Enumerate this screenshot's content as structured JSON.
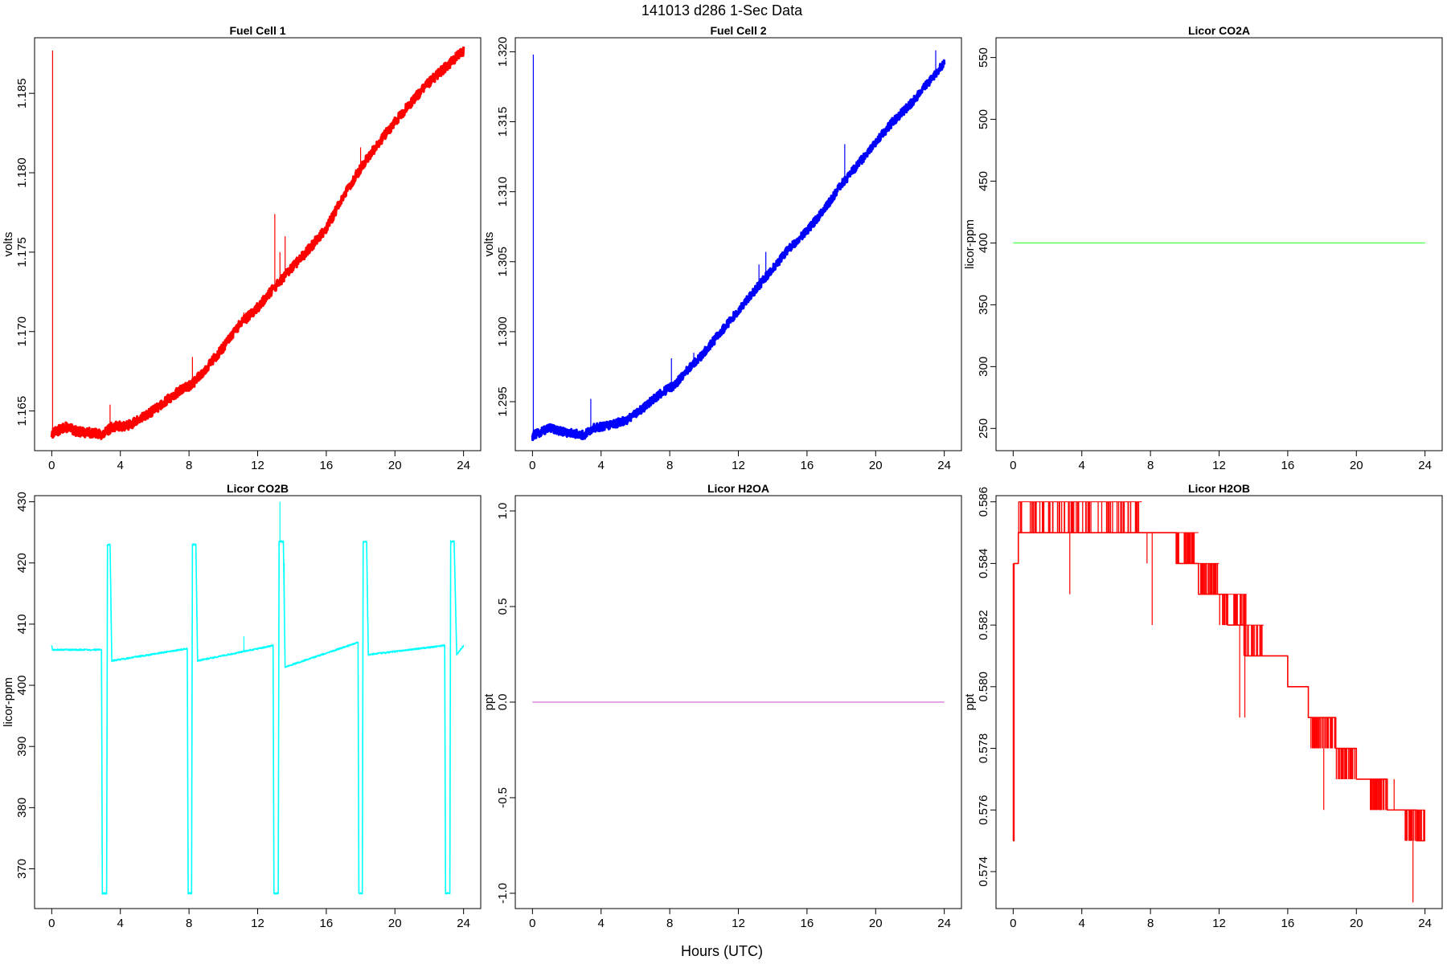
{
  "figure": {
    "title": "141013   d286   1-Sec Data",
    "xlabel": "Hours (UTC)"
  },
  "chart_data": [
    {
      "type": "line",
      "title": "Fuel Cell 1",
      "ylabel": "volts",
      "color": "#ff0000",
      "xlim": [
        -1,
        25
      ],
      "ylim": [
        1.1625,
        1.1885
      ],
      "xticks": [
        0,
        4,
        8,
        12,
        16,
        20,
        24
      ],
      "yticks": [
        1.165,
        1.17,
        1.175,
        1.18,
        1.185
      ],
      "ytick_labels": [
        "1.165",
        "1.170",
        "1.175",
        "1.180",
        "1.185"
      ],
      "band": 0.0003,
      "series": [
        {
          "x": [
            0,
            0.05,
            0.8,
            1.5,
            2.5,
            3.0,
            3.5,
            4.5,
            5.5,
            6.5,
            7.5,
            8.2,
            9.0,
            10,
            11,
            12,
            13,
            14,
            15,
            16,
            17,
            18,
            19,
            20,
            21,
            22,
            23,
            24
          ],
          "y": [
            1.1635,
            1.1636,
            1.164,
            1.1637,
            1.1636,
            1.1635,
            1.164,
            1.1641,
            1.1647,
            1.1655,
            1.1663,
            1.1667,
            1.1677,
            1.169,
            1.1705,
            1.1715,
            1.1728,
            1.174,
            1.1752,
            1.1765,
            1.1785,
            1.1803,
            1.1818,
            1.1832,
            1.1845,
            1.1857,
            1.1867,
            1.1877
          ]
        }
      ],
      "spikes": [
        {
          "x": 0.05,
          "y": 1.1877
        },
        {
          "x": 3.4,
          "y": 1.1654
        },
        {
          "x": 8.2,
          "y": 1.1684
        },
        {
          "x": 11.2,
          "y": 1.1712
        },
        {
          "x": 13.0,
          "y": 1.1774
        },
        {
          "x": 13.3,
          "y": 1.175
        },
        {
          "x": 13.6,
          "y": 1.176
        },
        {
          "x": 18.0,
          "y": 1.1816
        },
        {
          "x": 23.5,
          "y": 1.1876
        }
      ]
    },
    {
      "type": "line",
      "title": "Fuel Cell 2",
      "ylabel": "volts",
      "color": "#0000ff",
      "xlim": [
        -1,
        25
      ],
      "ylim": [
        1.2915,
        1.321
      ],
      "xticks": [
        0,
        4,
        8,
        12,
        16,
        20,
        24
      ],
      "yticks": [
        1.295,
        1.3,
        1.305,
        1.31,
        1.315,
        1.32
      ],
      "ytick_labels": [
        "1.295",
        "1.300",
        "1.305",
        "1.310",
        "1.315",
        "1.320"
      ],
      "band": 0.0003,
      "series": [
        {
          "x": [
            0,
            0.05,
            1.0,
            2.0,
            3.0,
            3.5,
            4.5,
            5.5,
            6.5,
            7.5,
            8.3,
            9.0,
            10,
            11,
            12,
            13,
            14,
            15,
            16,
            17,
            18,
            19,
            20,
            21,
            22,
            23,
            24
          ],
          "y": [
            1.2925,
            1.2926,
            1.2931,
            1.2928,
            1.2926,
            1.2931,
            1.2933,
            1.2937,
            1.2946,
            1.2956,
            1.2962,
            1.2972,
            1.2985,
            1.3,
            1.3015,
            1.303,
            1.3045,
            1.306,
            1.3072,
            1.3087,
            1.3105,
            1.312,
            1.3135,
            1.315,
            1.3162,
            1.3177,
            1.3192
          ]
        }
      ],
      "spikes": [
        {
          "x": 0.05,
          "y": 1.3198
        },
        {
          "x": 3.4,
          "y": 1.2952
        },
        {
          "x": 8.1,
          "y": 1.2981
        },
        {
          "x": 9.4,
          "y": 1.2985
        },
        {
          "x": 13.2,
          "y": 1.3048
        },
        {
          "x": 13.6,
          "y": 1.3057
        },
        {
          "x": 18.2,
          "y": 1.3134
        },
        {
          "x": 23.5,
          "y": 1.3201
        }
      ]
    },
    {
      "type": "line",
      "title": "Licor CO2A",
      "ylabel": "licor-ppm",
      "color": "#66ff66",
      "xlim": [
        -1,
        25
      ],
      "ylim": [
        232,
        566
      ],
      "xticks": [
        0,
        4,
        8,
        12,
        16,
        20,
        24
      ],
      "yticks": [
        250,
        300,
        350,
        400,
        450,
        500,
        550
      ],
      "ytick_labels": [
        "250",
        "300",
        "350",
        "400",
        "450",
        "500",
        "550"
      ],
      "band": 0,
      "series": [
        {
          "x": [
            0,
            24
          ],
          "y": [
            400,
            400
          ]
        }
      ],
      "spikes": []
    },
    {
      "type": "line",
      "title": "Licor CO2B",
      "ylabel": "licor-ppm",
      "color": "#00ffff",
      "xlim": [
        -1,
        25
      ],
      "ylim": [
        363.5,
        431
      ],
      "xticks": [
        0,
        4,
        8,
        12,
        16,
        20,
        24
      ],
      "yticks": [
        370,
        380,
        390,
        400,
        410,
        420,
        430
      ],
      "ytick_labels": [
        "370",
        "380",
        "390",
        "400",
        "410",
        "420",
        "430"
      ],
      "band": 0.12,
      "series": [
        {
          "x": [
            0,
            0.05,
            2.9,
            2.95,
            3.2,
            3.25,
            3.4,
            3.5,
            7.9,
            7.95,
            8.15,
            8.2,
            8.4,
            8.5,
            12.9,
            12.95,
            13.2,
            13.25,
            13.5,
            13.6,
            17.85,
            17.9,
            18.1,
            18.15,
            18.35,
            18.45,
            22.9,
            22.95,
            23.2,
            23.25,
            23.45,
            23.6,
            24
          ],
          "y": [
            406.5,
            405.8,
            405.8,
            366,
            366,
            423,
            423,
            404,
            406,
            366,
            366,
            423,
            423,
            404,
            406.5,
            366,
            366,
            423.5,
            423.5,
            403,
            407,
            366,
            366,
            423.5,
            423.5,
            405,
            406.5,
            366,
            366,
            423.5,
            423.5,
            405,
            406.5
          ]
        }
      ],
      "spikes": [
        {
          "x": 3.45,
          "y": 411
        },
        {
          "x": 8.45,
          "y": 411
        },
        {
          "x": 11.2,
          "y": 408
        },
        {
          "x": 13.3,
          "y": 430
        },
        {
          "x": 13.55,
          "y": 420
        },
        {
          "x": 18.4,
          "y": 411
        },
        {
          "x": 23.55,
          "y": 411
        }
      ]
    },
    {
      "type": "line",
      "title": "Licor H2OA",
      "ylabel": "ppt",
      "color": "#dd88dd",
      "xlim": [
        -1,
        25
      ],
      "ylim": [
        -1.08,
        1.08
      ],
      "xticks": [
        0,
        4,
        8,
        12,
        16,
        20,
        24
      ],
      "yticks": [
        -1.0,
        -0.5,
        0.0,
        0.5,
        1.0
      ],
      "ytick_labels": [
        "-1.0",
        "-0.5",
        "0.0",
        "0.5",
        "1.0"
      ],
      "band": 0,
      "series": [
        {
          "x": [
            0,
            24
          ],
          "y": [
            0,
            0
          ]
        }
      ],
      "spikes": []
    },
    {
      "type": "line",
      "title": "Licor H2OB",
      "ylabel": "ppt",
      "color": "#ff0000",
      "xlim": [
        -1,
        25
      ],
      "ylim": [
        0.5728,
        0.5862
      ],
      "xticks": [
        0,
        4,
        8,
        12,
        16,
        20,
        24
      ],
      "yticks": [
        0.574,
        0.576,
        0.578,
        0.58,
        0.582,
        0.584,
        0.586
      ],
      "ytick_labels": [
        "0.574",
        "0.576",
        "0.578",
        "0.580",
        "0.582",
        "0.584",
        "0.586"
      ],
      "band": 0,
      "series": [
        {
          "x": [
            0,
            0.05,
            0.3,
            7.5,
            9.5,
            10.8,
            12.5,
            13.5,
            16.0,
            17.2,
            18.8,
            20.0,
            21.8,
            23.5,
            24
          ],
          "y": [
            0.575,
            0.584,
            0.585,
            0.585,
            0.584,
            0.583,
            0.582,
            0.581,
            0.58,
            0.579,
            0.578,
            0.577,
            0.576,
            0.575,
            0.575
          ]
        }
      ],
      "noise": [
        {
          "x0": 0.3,
          "x1": 7.5,
          "lo": 0.585,
          "hi": 0.586,
          "n": 70
        },
        {
          "x0": 9.5,
          "x1": 10.8,
          "lo": 0.584,
          "hi": 0.585,
          "n": 25
        },
        {
          "x0": 10.8,
          "x1": 12.0,
          "lo": 0.583,
          "hi": 0.584,
          "n": 30
        },
        {
          "x0": 12.0,
          "x1": 13.6,
          "lo": 0.582,
          "hi": 0.583,
          "n": 25
        },
        {
          "x0": 13.4,
          "x1": 14.6,
          "lo": 0.581,
          "hi": 0.582,
          "n": 20
        },
        {
          "x0": 17.2,
          "x1": 18.8,
          "lo": 0.578,
          "hi": 0.579,
          "n": 35
        },
        {
          "x0": 18.8,
          "x1": 20.0,
          "lo": 0.577,
          "hi": 0.578,
          "n": 30
        },
        {
          "x0": 20.8,
          "x1": 21.8,
          "lo": 0.576,
          "hi": 0.577,
          "n": 35
        },
        {
          "x0": 22.8,
          "x1": 24.0,
          "lo": 0.575,
          "hi": 0.576,
          "n": 30
        }
      ],
      "spikes": [
        {
          "x": 0.0,
          "y": 0.575,
          "from": 0.584
        },
        {
          "x": 3.3,
          "y": 0.583,
          "from": 0.585
        },
        {
          "x": 8.1,
          "y": 0.582,
          "from": 0.585
        },
        {
          "x": 7.8,
          "y": 0.584,
          "from": 0.585
        },
        {
          "x": 13.2,
          "y": 0.579,
          "from": 0.582
        },
        {
          "x": 13.5,
          "y": 0.579,
          "from": 0.581
        },
        {
          "x": 18.1,
          "y": 0.576,
          "from": 0.578
        },
        {
          "x": 19.2,
          "y": 0.577,
          "from": 0.578
        },
        {
          "x": 23.3,
          "y": 0.573,
          "from": 0.575
        },
        {
          "x": 22.2,
          "y": 0.577,
          "from": 0.576
        }
      ]
    }
  ]
}
